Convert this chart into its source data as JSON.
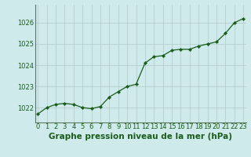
{
  "x": [
    0,
    1,
    2,
    3,
    4,
    5,
    6,
    7,
    8,
    9,
    10,
    11,
    12,
    13,
    14,
    15,
    16,
    17,
    18,
    19,
    20,
    21,
    22,
    23
  ],
  "y": [
    1021.7,
    1022.0,
    1022.15,
    1022.2,
    1022.15,
    1022.0,
    1021.95,
    1022.05,
    1022.5,
    1022.75,
    1023.0,
    1023.1,
    1024.1,
    1024.4,
    1024.45,
    1024.7,
    1024.75,
    1024.75,
    1024.9,
    1025.0,
    1025.1,
    1025.5,
    1026.0,
    1026.2
  ],
  "line_color": "#1a5c1a",
  "marker_color": "#1a5c1a",
  "bg_color": "#ceeaea",
  "grid_color": "#b0c8c8",
  "spine_color": "#5a7a5a",
  "title": "Graphe pression niveau de la mer (hPa)",
  "xlabel_ticks": [
    "0",
    "1",
    "2",
    "3",
    "4",
    "5",
    "6",
    "7",
    "8",
    "9",
    "10",
    "11",
    "12",
    "13",
    "14",
    "15",
    "16",
    "17",
    "18",
    "19",
    "20",
    "21",
    "22",
    "23"
  ],
  "yticks": [
    1022,
    1023,
    1024,
    1025,
    1026
  ],
  "ylim": [
    1021.3,
    1026.85
  ],
  "xlim": [
    -0.3,
    23.3
  ],
  "title_fontsize": 7.5,
  "tick_fontsize": 6.0,
  "fig_width": 3.2,
  "fig_height": 2.0,
  "dpi": 100
}
